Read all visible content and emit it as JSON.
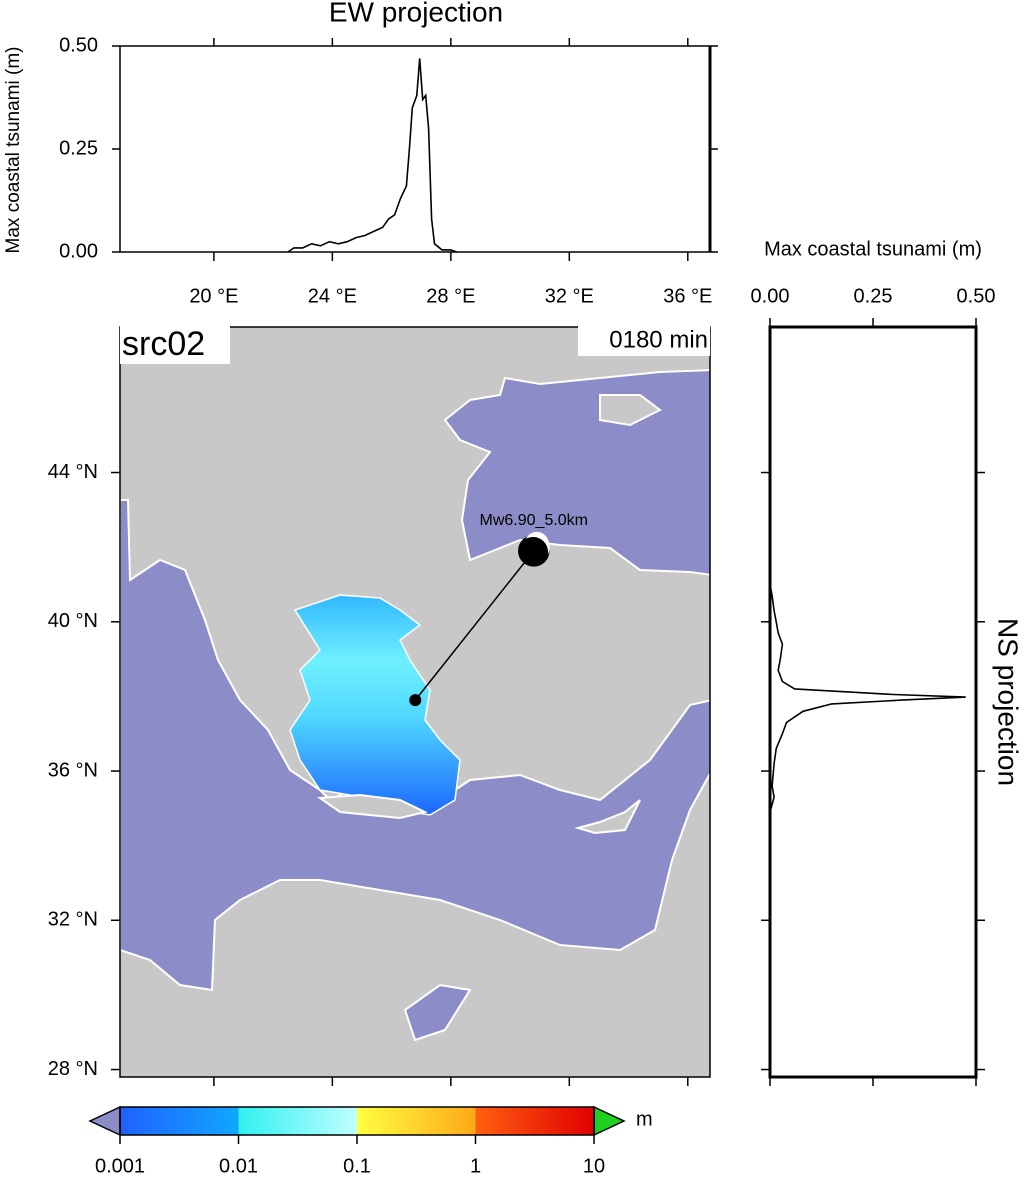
{
  "chart_data": [
    {
      "type": "line",
      "title": "EW projection",
      "y_label": "Max coastal tsunami (m)",
      "color": "#000000",
      "x": [
        22.5,
        22.7,
        23.0,
        23.3,
        23.6,
        23.9,
        24.2,
        24.5,
        24.8,
        25.1,
        25.4,
        25.7,
        25.9,
        26.1,
        26.3,
        26.5,
        26.6,
        26.7,
        26.85,
        26.95,
        27.05,
        27.15,
        27.25,
        27.35,
        27.45,
        27.7,
        28.0,
        28.2
      ],
      "values": [
        0,
        0.01,
        0.01,
        0.02,
        0.015,
        0.025,
        0.02,
        0.025,
        0.035,
        0.04,
        0.05,
        0.06,
        0.08,
        0.09,
        0.13,
        0.16,
        0.25,
        0.35,
        0.38,
        0.47,
        0.37,
        0.38,
        0.3,
        0.08,
        0.02,
        0.005,
        0.005,
        0
      ],
      "xlim": [
        16.83,
        36.75
      ],
      "ylim": [
        0,
        0.5
      ],
      "xticks": [
        {
          "value": 20,
          "label": "20 °E"
        },
        {
          "value": 24,
          "label": "24 °E"
        },
        {
          "value": 28,
          "label": "28 °E"
        },
        {
          "value": 32,
          "label": "32 °E"
        },
        {
          "value": 36,
          "label": "36 °E"
        }
      ],
      "yticks": [
        {
          "value": 0,
          "label": "0.00"
        },
        {
          "value": 0.25,
          "label": "0.25"
        },
        {
          "value": 0.5,
          "label": "0.50"
        }
      ]
    },
    {
      "type": "map",
      "title": "src02",
      "subtitle": "0180 min",
      "xlim": [
        16.83,
        36.75
      ],
      "ylim": [
        27.8,
        47.9
      ],
      "yticks": [
        {
          "value": 28,
          "label": "28 °N"
        },
        {
          "value": 32,
          "label": "32 °N"
        },
        {
          "value": 36,
          "label": "36 °N"
        },
        {
          "value": 40,
          "label": "40 °N"
        },
        {
          "value": 44,
          "label": "44 °N"
        }
      ],
      "land_color": "#c8c8c8",
      "sea_color": "#8c8cc8",
      "event": {
        "label": "Mw6.90_5.0km",
        "lon": 26.8,
        "lat": 37.9,
        "marker_lon": 30.8,
        "marker_lat": 41.9
      }
    },
    {
      "type": "profile",
      "title": "NS projection",
      "x_label": "Max coastal tsunami (m)",
      "color": "#000000",
      "y": [
        41.0,
        40.7,
        40.3,
        40.0,
        39.7,
        39.4,
        39.0,
        38.7,
        38.4,
        38.2,
        38.05,
        37.98,
        37.9,
        37.8,
        37.6,
        37.3,
        37.0,
        36.6,
        36.2,
        35.6,
        35.3,
        35.1,
        34.9
      ],
      "values": [
        0,
        0.005,
        0.01,
        0.015,
        0.02,
        0.03,
        0.025,
        0.02,
        0.03,
        0.06,
        0.3,
        0.475,
        0.32,
        0.15,
        0.08,
        0.04,
        0.03,
        0.015,
        0.01,
        0.005,
        0.01,
        0.005,
        0
      ],
      "xlim": [
        0,
        0.5
      ],
      "ylim": [
        27.8,
        47.9
      ],
      "xticks": [
        {
          "value": 0,
          "label": "0.00"
        },
        {
          "value": 0.25,
          "label": "0.25"
        },
        {
          "value": 0.5,
          "label": "0.50"
        }
      ],
      "yticks": [
        28,
        32,
        36,
        40,
        44
      ]
    },
    {
      "type": "colorbar",
      "label": "m",
      "log": true,
      "xlim": [
        0.001,
        10
      ],
      "xticks": [
        {
          "value": 0.001,
          "label": "0.001"
        },
        {
          "value": 0.01,
          "label": "0.01"
        },
        {
          "value": 0.1,
          "label": "0.1"
        },
        1,
        10
      ],
      "colors": [
        "#2060ff",
        "#10a8ff",
        "#30f0f0",
        "#c0ffff",
        "#ffff40",
        "#ffa818",
        "#ff6010",
        "#e00000"
      ],
      "under_color": "#8c8cc8",
      "over_color": "#20d020"
    }
  ]
}
